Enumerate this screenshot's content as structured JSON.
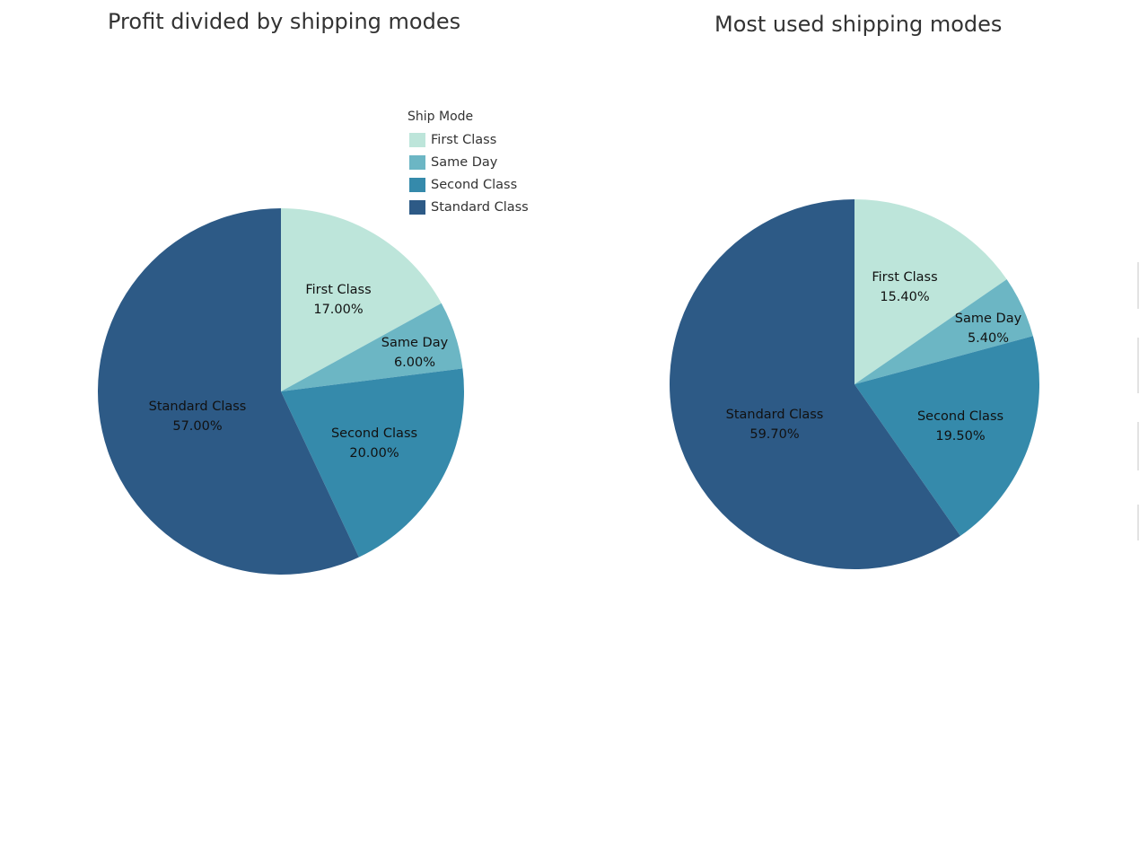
{
  "chart_data": [
    {
      "type": "pie",
      "title": "Profit divided by shipping modes",
      "categories": [
        "First Class",
        "Same Day",
        "Second Class",
        "Standard Class"
      ],
      "values": [
        17.0,
        6.0,
        20.0,
        57.0
      ],
      "value_labels": [
        "17.00%",
        "6.00%",
        "20.00%",
        "57.00%"
      ],
      "colors": [
        "#bde5da",
        "#6cb6c4",
        "#358aab",
        "#2d5a86"
      ],
      "start_angle_deg": 0,
      "direction": "clockwise",
      "legend": {
        "title": "Ship Mode",
        "placement": "top-right",
        "items": [
          "First Class",
          "Same Day",
          "Second Class",
          "Standard Class"
        ]
      }
    },
    {
      "type": "pie",
      "title": "Most used shipping modes",
      "categories": [
        "First Class",
        "Same Day",
        "Second Class",
        "Standard Class"
      ],
      "values": [
        15.4,
        5.4,
        19.5,
        59.7
      ],
      "value_labels": [
        "15.40%",
        "5.40%",
        "19.50%",
        "59.70%"
      ],
      "colors": [
        "#bde5da",
        "#6cb6c4",
        "#358aab",
        "#2d5a86"
      ],
      "start_angle_deg": 0,
      "direction": "clockwise"
    }
  ]
}
